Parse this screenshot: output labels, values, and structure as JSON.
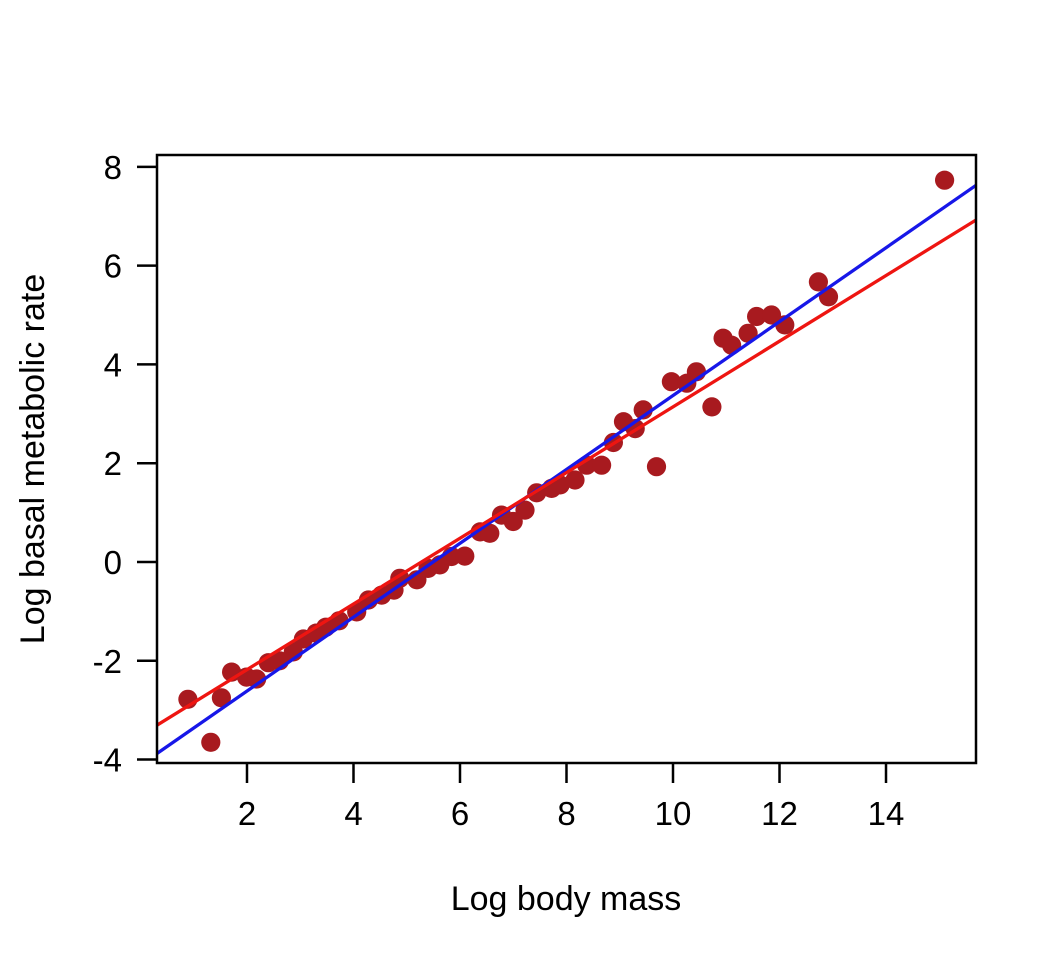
{
  "chart_data": {
    "type": "scatter",
    "title": "",
    "xlabel": "Log body mass",
    "ylabel": "Log basal metabolic rate",
    "x_ticks": [
      2,
      4,
      6,
      8,
      10,
      12,
      14
    ],
    "y_ticks": [
      -4,
      -2,
      0,
      2,
      4,
      6,
      8
    ],
    "x_range": [
      0.31,
      15.69
    ],
    "y_range": [
      -4.07,
      8.24
    ],
    "grid": "off",
    "legend": "none",
    "point_color": "#A81A1F",
    "frame_color": "#000000",
    "points": [
      [
        0.89,
        -2.78
      ],
      [
        1.32,
        -3.65
      ],
      [
        1.52,
        -2.75
      ],
      [
        1.71,
        -2.23
      ],
      [
        1.99,
        -2.33
      ],
      [
        2.18,
        -2.37
      ],
      [
        2.4,
        -2.04
      ],
      [
        2.61,
        -2.0
      ],
      [
        2.87,
        -1.82
      ],
      [
        3.06,
        -1.56
      ],
      [
        3.3,
        -1.44
      ],
      [
        3.48,
        -1.32
      ],
      [
        3.73,
        -1.19
      ],
      [
        4.06,
        -1.01
      ],
      [
        4.28,
        -0.77
      ],
      [
        4.53,
        -0.67
      ],
      [
        4.76,
        -0.57
      ],
      [
        4.87,
        -0.33
      ],
      [
        5.19,
        -0.36
      ],
      [
        5.4,
        -0.13
      ],
      [
        5.62,
        -0.06
      ],
      [
        5.84,
        0.11
      ],
      [
        6.09,
        0.12
      ],
      [
        6.38,
        0.61
      ],
      [
        6.56,
        0.58
      ],
      [
        6.78,
        0.95
      ],
      [
        7.0,
        0.82
      ],
      [
        7.22,
        1.05
      ],
      [
        7.44,
        1.4
      ],
      [
        7.72,
        1.49
      ],
      [
        7.88,
        1.56
      ],
      [
        8.16,
        1.66
      ],
      [
        8.38,
        1.96
      ],
      [
        8.66,
        1.96
      ],
      [
        8.88,
        2.42
      ],
      [
        9.07,
        2.84
      ],
      [
        9.29,
        2.7
      ],
      [
        9.44,
        3.08
      ],
      [
        9.69,
        1.93
      ],
      [
        9.97,
        3.65
      ],
      [
        10.26,
        3.62
      ],
      [
        10.44,
        3.85
      ],
      [
        10.73,
        3.14
      ],
      [
        10.94,
        4.53
      ],
      [
        11.1,
        4.39
      ],
      [
        11.41,
        4.63
      ],
      [
        11.57,
        4.97
      ],
      [
        11.85,
        5.0
      ],
      [
        12.1,
        4.8
      ],
      [
        12.73,
        5.67
      ],
      [
        12.92,
        5.37
      ],
      [
        15.1,
        7.73
      ]
    ],
    "lines": [
      {
        "name": "fitted-line-blue",
        "color": "#1717E8",
        "slope": 0.748,
        "intercept": -4.11
      },
      {
        "name": "fitted-line-red",
        "color": "#EE1511",
        "slope": 0.665,
        "intercept": -3.51
      }
    ]
  }
}
